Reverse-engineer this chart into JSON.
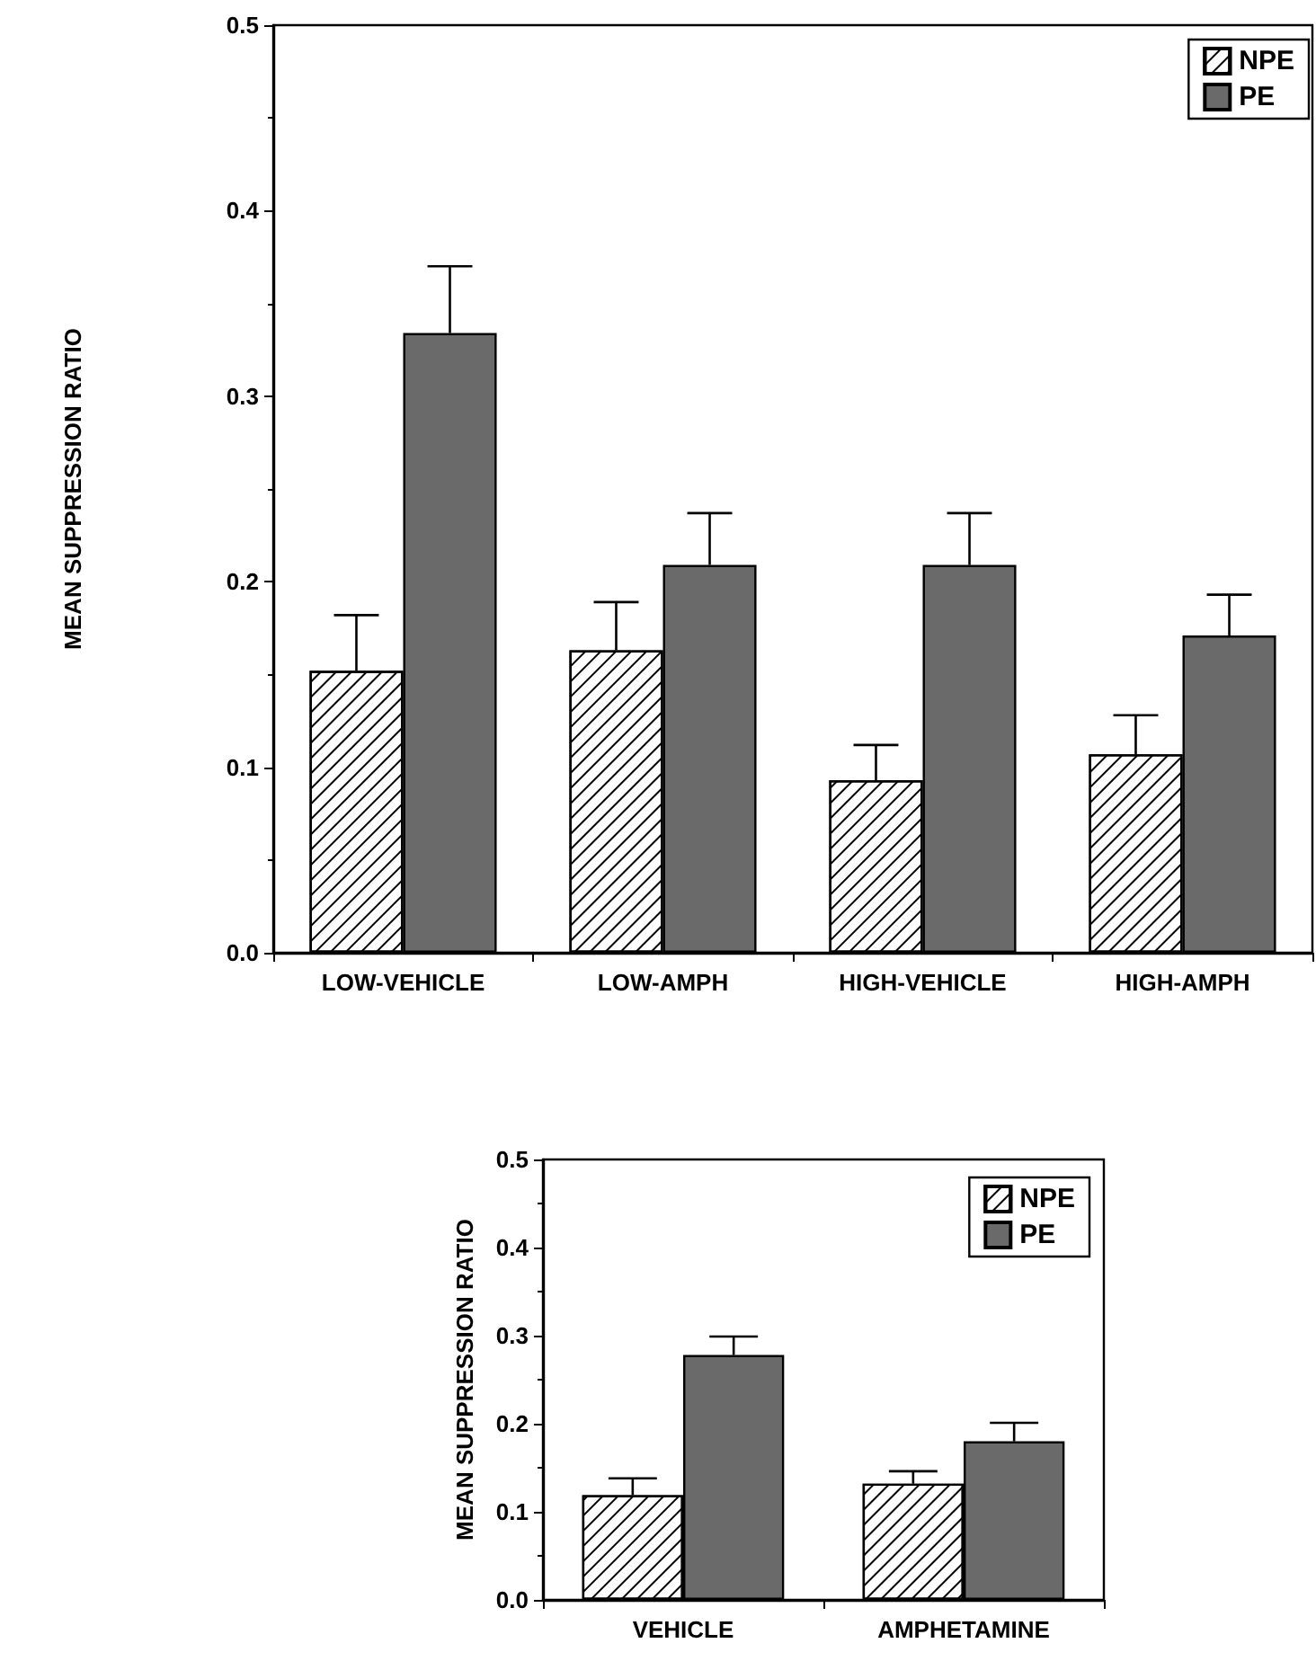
{
  "chart_data": [
    {
      "type": "bar",
      "ylabel": "MEAN SUPPRESSION RATIO",
      "categories": [
        "LOW-VEHICLE",
        "LOW-AMPH",
        "HIGH-VEHICLE",
        "HIGH-AMPH"
      ],
      "ylim": [
        0,
        0.5
      ],
      "yticks": [
        {
          "value": 0,
          "label": "0.0"
        },
        0.1,
        0.2,
        0.3,
        0.4,
        0.5
      ],
      "legend": "top right",
      "grid": false,
      "series": [
        {
          "name": "NPE",
          "color": "#ffffff",
          "values": [
            0.152,
            0.163,
            0.093,
            0.107
          ],
          "errors": [
            [
              0.152,
              0.182
            ],
            [
              0.163,
              0.189
            ],
            [
              0.093,
              0.112
            ],
            [
              0.107,
              0.128
            ]
          ]
        },
        {
          "name": "PE",
          "color": "#6a6a6a",
          "values": [
            0.334,
            0.209,
            0.209,
            0.171
          ],
          "errors": [
            [
              0.334,
              0.37
            ],
            [
              0.209,
              0.237
            ],
            [
              0.209,
              0.237
            ],
            [
              0.171,
              0.193
            ]
          ]
        }
      ]
    },
    {
      "type": "bar",
      "ylabel": "MEAN SUPPRESSION RATIO",
      "categories": [
        "VEHICLE",
        "AMPHETAMINE"
      ],
      "ylim": [
        0,
        0.5
      ],
      "yticks": [
        {
          "value": 0,
          "label": "0.0"
        },
        0.1,
        0.2,
        0.3,
        0.4,
        0.5
      ],
      "legend": "top right",
      "grid": false,
      "series": [
        {
          "name": "NPE",
          "color": "#ffffff",
          "values": [
            0.119,
            0.132
          ],
          "errors": [
            [
              0.119,
              0.138
            ],
            [
              0.132,
              0.146
            ]
          ]
        },
        {
          "name": "PE",
          "color": "#6a6a6a",
          "values": [
            0.278,
            0.18
          ],
          "errors": [
            [
              0.278,
              0.299
            ],
            [
              0.18,
              0.201
            ]
          ]
        }
      ]
    }
  ]
}
